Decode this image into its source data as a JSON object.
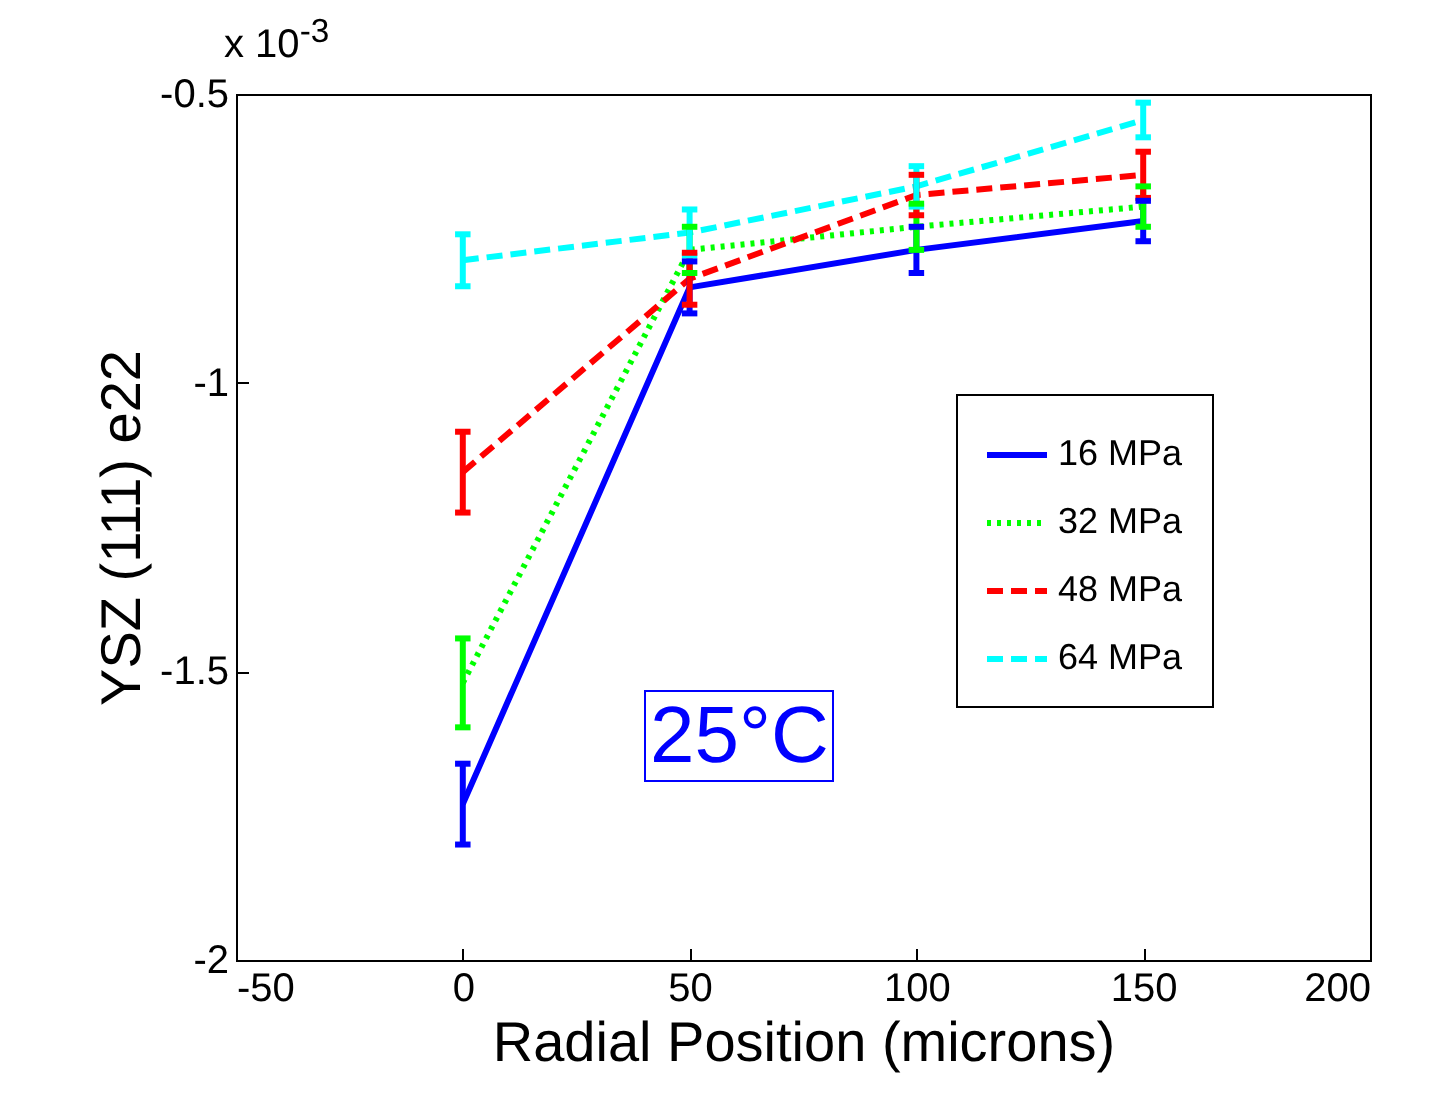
{
  "chart_data": {
    "type": "line",
    "xlabel": "Radial Position (microns)",
    "ylabel": "YSZ (111) e22",
    "x": [
      0,
      50,
      100,
      150
    ],
    "xlim": [
      -50,
      200
    ],
    "xticks": [
      -50,
      0,
      50,
      100,
      150,
      200
    ],
    "ylim": [
      -2,
      -0.5
    ],
    "yticks": [
      -2,
      -1.5,
      -1,
      -0.5
    ],
    "series": [
      {
        "name": "16 MPa",
        "color": "#0000ff",
        "line_style": "solid",
        "values": [
          -1.73,
          -0.835,
          -0.77,
          -0.72
        ],
        "errors": [
          0.07,
          0.045,
          0.04,
          0.035
        ]
      },
      {
        "name": "32 MPa",
        "color": "#00ff00",
        "line_style": "dotted",
        "values": [
          -1.52,
          -0.77,
          -0.73,
          -0.695
        ],
        "errors": [
          0.077,
          0.04,
          0.04,
          0.035
        ]
      },
      {
        "name": "48 MPa",
        "color": "#ff0000",
        "line_style": "dashed",
        "values": [
          -1.155,
          -0.82,
          -0.675,
          -0.64
        ],
        "errors": [
          0.07,
          0.045,
          0.035,
          0.04
        ]
      },
      {
        "name": "64 MPa",
        "color": "#00ffff",
        "line_style": "dashed",
        "values": [
          -0.788,
          -0.74,
          -0.66,
          -0.545
        ],
        "errors": [
          0.045,
          0.04,
          0.035,
          0.03
        ]
      }
    ],
    "legend": "right",
    "grid": false,
    "annotations": [
      "x 10$^{-3}$",
      "25°C"
    ]
  }
}
